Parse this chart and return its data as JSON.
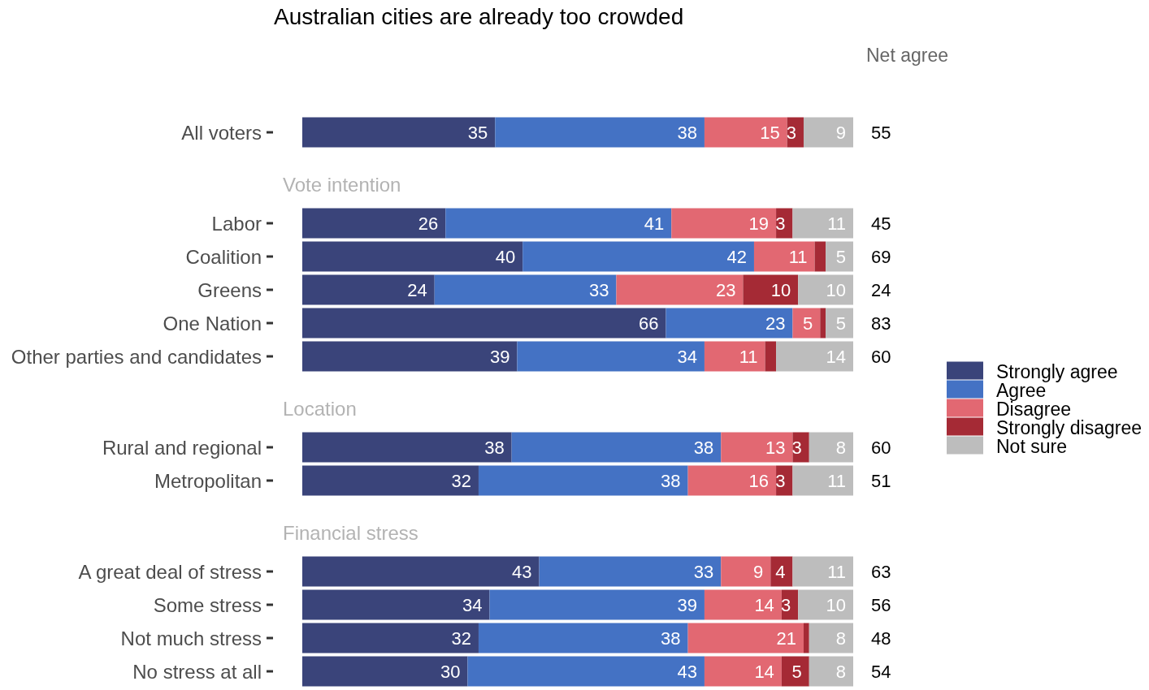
{
  "chart_data": [
    {
      "type": "bar",
      "orientation": "horizontal",
      "stacked": true,
      "title": "Australian cities are already too crowded",
      "categories": [
        "All voters"
      ],
      "series": [
        {
          "color": "#3a447a",
          "values": [
            35
          ],
          "value_labels": [
            "35"
          ]
        },
        {
          "color": "#4472c4",
          "values": [
            38
          ],
          "value_labels": [
            "38"
          ]
        },
        {
          "color": "#e26872",
          "values": [
            15
          ],
          "value_labels": [
            "15"
          ]
        },
        {
          "color": "#a52a35",
          "values": [
            3
          ],
          "value_labels": [
            "3"
          ]
        },
        {
          "color": "#bdbdbd",
          "values": [
            9
          ],
          "value_labels": [
            "9"
          ]
        }
      ],
      "xlim": [
        0,
        100
      ],
      "tick_labels": "y",
      "annotations": [
        "Net agree",
        "55"
      ]
    },
    {
      "type": "bar",
      "orientation": "horizontal",
      "stacked": true,
      "title": "Vote intention",
      "categories": [
        "Labor",
        "Coalition",
        "Greens",
        "One Nation",
        "Other parties and candidates"
      ],
      "series": [
        {
          "name": "Strongly agree",
          "color": "#3a447a",
          "values": [
            26,
            40,
            24,
            66,
            39
          ],
          "value_labels": [
            "26",
            "40",
            "24",
            "66",
            "39"
          ]
        },
        {
          "name": "Agree",
          "color": "#4472c4",
          "values": [
            41,
            42,
            33,
            23,
            34
          ],
          "value_labels": [
            "41",
            "42",
            "33",
            "23",
            "34"
          ]
        },
        {
          "name": "Disagree",
          "color": "#e26872",
          "values": [
            19,
            11,
            23,
            5,
            11
          ],
          "value_labels": [
            "19",
            "11",
            "23",
            "5",
            "11"
          ]
        },
        {
          "name": "Strongly disagree",
          "color": "#a52a35",
          "values": [
            3,
            2,
            10,
            1,
            2
          ],
          "value_labels": [
            "3",
            null,
            "10",
            null,
            null
          ]
        },
        {
          "name": "Not sure",
          "color": "#bdbdbd",
          "values": [
            11,
            5,
            10,
            5,
            14
          ],
          "value_labels": [
            "11",
            "5",
            "10",
            "5",
            "14"
          ]
        }
      ],
      "xlim": [
        0,
        100
      ],
      "tick_labels": "y",
      "legend": "right",
      "annotations": [
        "45",
        "69",
        "24",
        "83",
        "60"
      ]
    },
    {
      "type": "bar",
      "orientation": "horizontal",
      "stacked": true,
      "title": "Location",
      "categories": [
        "Rural and regional",
        "Metropolitan"
      ],
      "series": [
        {
          "color": "#3a447a",
          "values": [
            38,
            32
          ],
          "value_labels": [
            "38",
            "32"
          ]
        },
        {
          "color": "#4472c4",
          "values": [
            38,
            38
          ],
          "value_labels": [
            "38",
            "38"
          ]
        },
        {
          "color": "#e26872",
          "values": [
            13,
            16
          ],
          "value_labels": [
            "13",
            "16"
          ]
        },
        {
          "color": "#a52a35",
          "values": [
            3,
            3
          ],
          "value_labels": [
            "3",
            "3"
          ]
        },
        {
          "color": "#bdbdbd",
          "values": [
            8,
            11
          ],
          "value_labels": [
            "8",
            "11"
          ]
        }
      ],
      "xlim": [
        0,
        100
      ],
      "tick_labels": "y",
      "annotations": [
        "60",
        "51"
      ]
    },
    {
      "type": "bar",
      "orientation": "horizontal",
      "stacked": true,
      "title": "Financial stress",
      "categories": [
        "A great deal of stress",
        "Some stress",
        "Not much stress",
        "No stress at all"
      ],
      "series": [
        {
          "color": "#3a447a",
          "values": [
            43,
            34,
            32,
            30
          ],
          "value_labels": [
            "43",
            "34",
            "32",
            "30"
          ]
        },
        {
          "color": "#4472c4",
          "values": [
            33,
            39,
            38,
            43
          ],
          "value_labels": [
            "33",
            "39",
            "38",
            "43"
          ]
        },
        {
          "color": "#e26872",
          "values": [
            9,
            14,
            21,
            14
          ],
          "value_labels": [
            "9",
            "14",
            "21",
            "14"
          ]
        },
        {
          "color": "#a52a35",
          "values": [
            4,
            3,
            1,
            5
          ],
          "value_labels": [
            "4",
            "3",
            null,
            "5"
          ]
        },
        {
          "color": "#bdbdbd",
          "values": [
            11,
            10,
            8,
            8
          ],
          "value_labels": [
            "11",
            "10",
            "8",
            "8"
          ]
        }
      ],
      "xlim": [
        0,
        100
      ],
      "tick_labels": "y",
      "annotations": [
        "63",
        "56",
        "48",
        "54"
      ]
    }
  ]
}
